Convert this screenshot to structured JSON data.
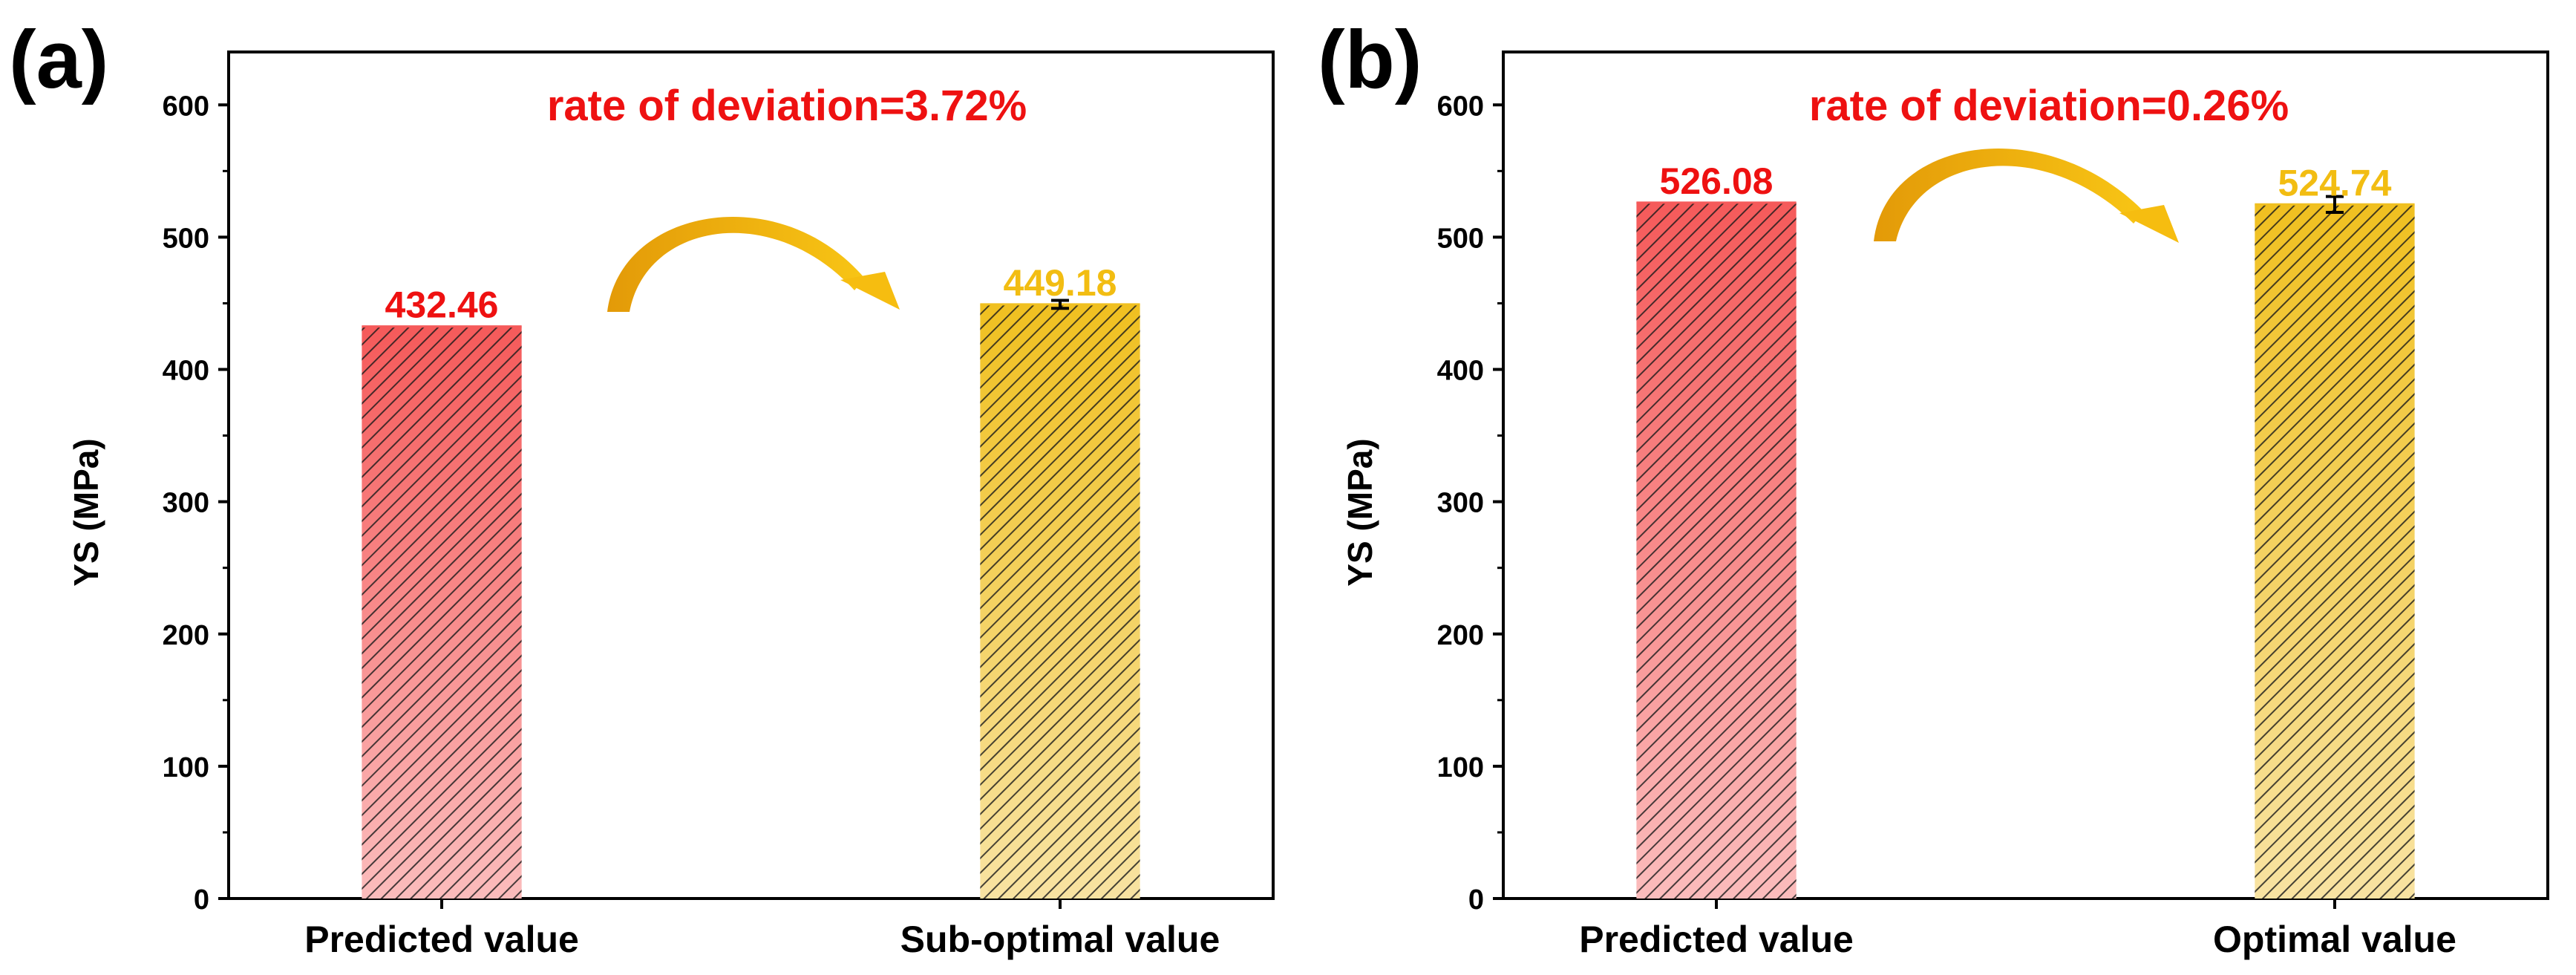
{
  "chart_data": [
    {
      "panel_label": "(a)",
      "type": "bar",
      "categories": [
        "Predicted value",
        "Sub-optimal value"
      ],
      "values": [
        432.46,
        449.18
      ],
      "error": [
        0,
        3
      ],
      "data_labels": [
        "432.46",
        "449.18"
      ],
      "bar_colors": [
        "#f55a5a",
        "#f0c020"
      ],
      "label_colors": [
        "#ee1111",
        "#f2bd12"
      ],
      "ylabel": "YS (MPa)",
      "xlabel": "",
      "ylim": [
        0,
        640
      ],
      "yticks": [
        0,
        100,
        200,
        300,
        400,
        500,
        600
      ],
      "ytick_labels": [
        "0",
        "100",
        "200",
        "300",
        "400",
        "500",
        "600"
      ],
      "annotation": "rate of deviation=3.72%",
      "annotation_color": "#ee1111",
      "arrow_color": "#f0aa10",
      "grid": false
    },
    {
      "panel_label": "(b)",
      "type": "bar",
      "categories": [
        "Predicted value",
        "Optimal value"
      ],
      "values": [
        526.08,
        524.74
      ],
      "error": [
        0,
        6
      ],
      "data_labels": [
        "526.08",
        "524.74"
      ],
      "bar_colors": [
        "#f55a5a",
        "#f0c020"
      ],
      "label_colors": [
        "#ee1111",
        "#f2bd12"
      ],
      "ylabel": "YS (MPa)",
      "xlabel": "",
      "ylim": [
        0,
        640
      ],
      "yticks": [
        0,
        100,
        200,
        300,
        400,
        500,
        600
      ],
      "ytick_labels": [
        "0",
        "100",
        "200",
        "300",
        "400",
        "500",
        "600"
      ],
      "annotation": "rate of deviation=0.26%",
      "annotation_color": "#ee1111",
      "arrow_color": "#f0aa10",
      "grid": false
    }
  ]
}
